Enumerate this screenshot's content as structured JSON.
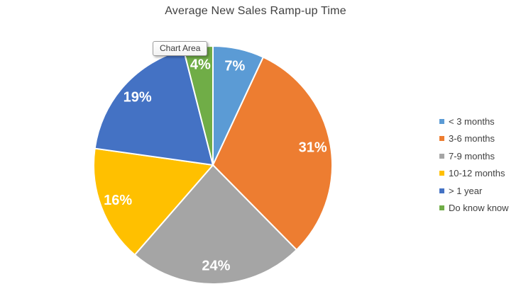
{
  "title": "Average New Sales Ramp-up Time",
  "tooltip": {
    "text": "Chart Area"
  },
  "chart_data": {
    "type": "pie",
    "title": "Average New Sales Ramp-up Time",
    "categories": [
      "< 3 months",
      "3-6 months",
      "7-9 months",
      "10-12 months",
      "> 1  year",
      "Do know know"
    ],
    "values": [
      7,
      31,
      24,
      16,
      19,
      4
    ],
    "labels": [
      "7%",
      "31%",
      "24%",
      "16%",
      "19%",
      "4%"
    ],
    "colors": [
      "#5B9BD5",
      "#ED7D31",
      "#A5A5A5",
      "#FFC000",
      "#4472C4",
      "#70AD47"
    ],
    "unit": "percent",
    "start_angle_deg": 0,
    "direction": "clockwise",
    "legend_position": "right",
    "slice_label_color": "#FFFFFF",
    "slice_border_color": "#FFFFFF",
    "title_color": "#404040"
  }
}
